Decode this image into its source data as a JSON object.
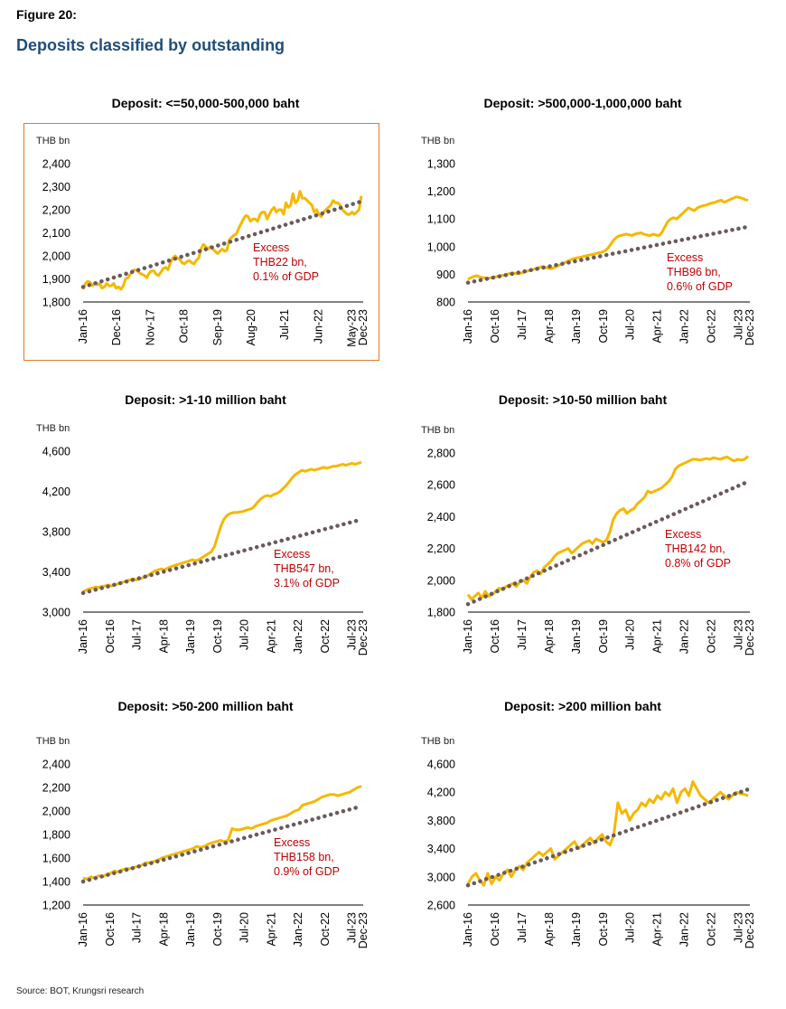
{
  "figure_label": "Figure 20:",
  "figure_title": "Deposits classified by outstanding",
  "source": "Source: BOT, Krungsri research",
  "colors": {
    "actual": "#f5b800",
    "trend": "#6b5a5a",
    "annotation": "#c00000",
    "highlight_border": "#e07b30",
    "title": "#1f4e79"
  },
  "chart_data": [
    {
      "type": "line",
      "title": "Deposit: <=50,000-500,000 baht",
      "ylabel": "THB bn",
      "ylim": [
        1800,
        2400
      ],
      "yticks": [
        "1,800",
        "1,900",
        "2,000",
        "2,100",
        "2,200",
        "2,300",
        "2,400"
      ],
      "xticks": [
        "Jan-16",
        "Dec-16",
        "Nov-17",
        "Oct-18",
        "Sep-19",
        "Aug-20",
        "Jul-21",
        "Jun-22",
        "May-23",
        "Dec-23"
      ],
      "annotation": [
        "Excess",
        "THB22 bn,",
        "0.1% of GDP"
      ],
      "highlighted": true,
      "series": [
        {
          "kind": "actual",
          "values": [
            1855,
            1880,
            1890,
            1885,
            1870,
            1880,
            1875,
            1880,
            1860,
            1865,
            1880,
            1870,
            1870,
            1880,
            1860,
            1865,
            1855,
            1870,
            1900,
            1905,
            1920,
            1935,
            1940,
            1935,
            1925,
            1920,
            1915,
            1905,
            1925,
            1935,
            1935,
            1920,
            1915,
            1930,
            1945,
            1950,
            1940,
            1970,
            1990,
            2000,
            1990,
            1985,
            1970,
            1965,
            1975,
            1980,
            1970,
            1965,
            1980,
            1990,
            2030,
            2050,
            2040,
            2030,
            2040,
            2030,
            2020,
            2010,
            2020,
            2030,
            2020,
            2025,
            2070,
            2080,
            2090,
            2095,
            2120,
            2140,
            2160,
            2175,
            2170,
            2150,
            2160,
            2160,
            2150,
            2180,
            2190,
            2190,
            2160,
            2180,
            2200,
            2210,
            2190,
            2200,
            2200,
            2180,
            2230,
            2210,
            2220,
            2270,
            2230,
            2240,
            2280,
            2250,
            2250,
            2240,
            2230,
            2220,
            2190,
            2200,
            2180,
            2170,
            2190,
            2200,
            2210,
            2220,
            2240,
            2230,
            2230,
            2220,
            2200,
            2190,
            2180,
            2180,
            2190,
            2180,
            2190,
            2200,
            2260
          ]
        },
        {
          "kind": "trend",
          "values": [
            1865,
            2236
          ]
        }
      ]
    },
    {
      "type": "line",
      "title": "Deposit: >500,000-1,000,000 baht",
      "ylabel": "THB bn",
      "ylim": [
        800,
        1300
      ],
      "yticks": [
        "800",
        "900",
        "1,000",
        "1,100",
        "1,200",
        "1,300"
      ],
      "xticks": [
        "Jan-16",
        "Oct-16",
        "Jul-17",
        "Apr-18",
        "Jan-19",
        "Oct-19",
        "Jul-20",
        "Apr-21",
        "Jan-22",
        "Oct-22",
        "Jul-23",
        "Dec-23"
      ],
      "annotation": [
        "Excess",
        "THB96 bn,",
        "0.6% of GDP"
      ],
      "highlighted": false,
      "series": [
        {
          "kind": "actual",
          "values": [
            882,
            888,
            892,
            895,
            890,
            888,
            887,
            886,
            888,
            890,
            893,
            895,
            897,
            900,
            903,
            905,
            903,
            902,
            905,
            908,
            912,
            915,
            918,
            922,
            925,
            928,
            925,
            922,
            920,
            925,
            930,
            935,
            940,
            945,
            950,
            955,
            958,
            960,
            962,
            965,
            968,
            970,
            972,
            975,
            978,
            980,
            985,
            995,
            1010,
            1025,
            1035,
            1040,
            1042,
            1045,
            1043,
            1040,
            1045,
            1048,
            1050,
            1045,
            1042,
            1040,
            1045,
            1042,
            1040,
            1050,
            1070,
            1090,
            1100,
            1105,
            1100,
            1110,
            1120,
            1130,
            1140,
            1135,
            1130,
            1140,
            1145,
            1148,
            1150,
            1155,
            1158,
            1160,
            1165,
            1168,
            1160,
            1165,
            1170,
            1175,
            1180,
            1178,
            1175,
            1170,
            1168
          ]
        },
        {
          "kind": "trend",
          "values": [
            870,
            1072
          ]
        }
      ]
    },
    {
      "type": "line",
      "title": "Deposit: >1-10 million baht",
      "ylabel": "THB bn",
      "ylim": [
        3000,
        4600
      ],
      "yticks": [
        "3,000",
        "3,400",
        "3,800",
        "4,200",
        "4,600"
      ],
      "xticks": [
        "Jan-16",
        "Oct-16",
        "Jul-17",
        "Apr-18",
        "Jan-19",
        "Oct-19",
        "Jul-20",
        "Apr-21",
        "Jan-22",
        "Oct-22",
        "Jul-23",
        "Dec-23"
      ],
      "annotation": [
        "Excess",
        "THB547 bn,",
        "3.1% of GDP"
      ],
      "highlighted": false,
      "series": [
        {
          "kind": "actual",
          "values": [
            3200,
            3220,
            3230,
            3240,
            3250,
            3245,
            3255,
            3260,
            3270,
            3260,
            3270,
            3280,
            3290,
            3300,
            3310,
            3320,
            3330,
            3320,
            3330,
            3340,
            3350,
            3370,
            3390,
            3410,
            3420,
            3430,
            3420,
            3435,
            3450,
            3460,
            3470,
            3480,
            3490,
            3500,
            3510,
            3520,
            3510,
            3520,
            3540,
            3560,
            3580,
            3600,
            3650,
            3750,
            3850,
            3920,
            3960,
            3980,
            3990,
            3990,
            3995,
            4000,
            4010,
            4020,
            4030,
            4060,
            4100,
            4130,
            4150,
            4160,
            4150,
            4170,
            4180,
            4200,
            4230,
            4260,
            4300,
            4340,
            4370,
            4390,
            4410,
            4400,
            4410,
            4420,
            4410,
            4420,
            4430,
            4440,
            4430,
            4440,
            4450,
            4450,
            4460,
            4470,
            4460,
            4470,
            4480,
            4470,
            4480,
            4490
          ]
        },
        {
          "kind": "trend",
          "values": [
            3190,
            3920
          ]
        }
      ]
    },
    {
      "type": "line",
      "title": "Deposit: >10-50 million baht",
      "ylabel": "THB bn",
      "ylim": [
        1800,
        2800
      ],
      "yticks": [
        "1,800",
        "2,000",
        "2,200",
        "2,400",
        "2,600",
        "2,800"
      ],
      "xticks": [
        "Jan-16",
        "Oct-16",
        "Jul-17",
        "Apr-18",
        "Jan-19",
        "Oct-19",
        "Jul-20",
        "Apr-21",
        "Jan-22",
        "Oct-22",
        "Jul-23",
        "Dec-23"
      ],
      "annotation": [
        "Excess",
        "THB142 bn,",
        "0.8% of GDP"
      ],
      "highlighted": false,
      "series": [
        {
          "kind": "actual",
          "values": [
            1910,
            1880,
            1900,
            1920,
            1890,
            1930,
            1900,
            1910,
            1930,
            1950,
            1940,
            1960,
            1970,
            1980,
            1960,
            1990,
            2000,
            1980,
            2020,
            2050,
            2060,
            2040,
            2080,
            2100,
            2120,
            2150,
            2170,
            2180,
            2190,
            2200,
            2170,
            2190,
            2210,
            2230,
            2240,
            2250,
            2230,
            2260,
            2250,
            2240,
            2250,
            2300,
            2380,
            2420,
            2440,
            2450,
            2420,
            2440,
            2450,
            2480,
            2500,
            2520,
            2560,
            2550,
            2560,
            2570,
            2580,
            2600,
            2620,
            2650,
            2700,
            2720,
            2730,
            2740,
            2750,
            2760,
            2760,
            2755,
            2760,
            2765,
            2760,
            2770,
            2765,
            2760,
            2770,
            2775,
            2760,
            2750,
            2760,
            2755,
            2760,
            2780
          ]
        },
        {
          "kind": "trend",
          "values": [
            1850,
            2620
          ]
        }
      ]
    },
    {
      "type": "line",
      "title": "Deposit: >50-200 million baht",
      "ylabel": "THB bn",
      "ylim": [
        1200,
        2400
      ],
      "yticks": [
        "1,200",
        "1,400",
        "1,600",
        "1,800",
        "2,000",
        "2,200",
        "2,400"
      ],
      "xticks": [
        "Jan-16",
        "Oct-16",
        "Jul-17",
        "Apr-18",
        "Jan-19",
        "Oct-19",
        "Jul-20",
        "Apr-21",
        "Jan-22",
        "Oct-22",
        "Jul-23",
        "Dec-23"
      ],
      "annotation": [
        "Excess",
        "THB158 bn,",
        "0.9% of GDP"
      ],
      "highlighted": false,
      "series": [
        {
          "kind": "actual",
          "values": [
            1430,
            1420,
            1440,
            1430,
            1450,
            1440,
            1460,
            1470,
            1490,
            1480,
            1500,
            1510,
            1510,
            1520,
            1530,
            1540,
            1560,
            1560,
            1570,
            1580,
            1600,
            1610,
            1620,
            1630,
            1640,
            1650,
            1660,
            1670,
            1680,
            1700,
            1690,
            1700,
            1720,
            1730,
            1740,
            1750,
            1740,
            1750,
            1850,
            1840,
            1840,
            1850,
            1860,
            1850,
            1870,
            1880,
            1890,
            1900,
            1920,
            1930,
            1940,
            1950,
            1960,
            1980,
            2000,
            2010,
            2050,
            2060,
            2070,
            2080,
            2100,
            2120,
            2130,
            2140,
            2140,
            2130,
            2140,
            2150,
            2160,
            2180,
            2200,
            2210
          ]
        },
        {
          "kind": "trend",
          "values": [
            1400,
            2040
          ]
        }
      ]
    },
    {
      "type": "line",
      "title": "Deposit: >200 million baht",
      "ylabel": "THB bn",
      "ylim": [
        2600,
        4600
      ],
      "yticks": [
        "2,600",
        "3,000",
        "3,400",
        "3,800",
        "4,200",
        "4,600"
      ],
      "xticks": [
        "Jan-16",
        "Oct-16",
        "Jul-17",
        "Apr-18",
        "Jan-19",
        "Oct-19",
        "Jul-20",
        "Apr-21",
        "Jan-22",
        "Oct-22",
        "Jul-23",
        "Dec-23"
      ],
      "annotation": [],
      "highlighted": false,
      "series": [
        {
          "kind": "actual",
          "values": [
            2900,
            3000,
            3050,
            2950,
            2880,
            3050,
            2900,
            3000,
            2950,
            3050,
            3100,
            3000,
            3100,
            3150,
            3100,
            3200,
            3250,
            3300,
            3350,
            3300,
            3350,
            3400,
            3250,
            3300,
            3350,
            3400,
            3450,
            3500,
            3400,
            3450,
            3500,
            3550,
            3480,
            3550,
            3600,
            3500,
            3450,
            3600,
            4050,
            3900,
            3950,
            3800,
            3900,
            3950,
            4050,
            4000,
            4100,
            4050,
            4150,
            4100,
            4200,
            4150,
            4250,
            4050,
            4200,
            4250,
            4150,
            4350,
            4250,
            4150,
            4100,
            4050,
            4100,
            4150,
            4200,
            4150,
            4100,
            4150,
            4200,
            4180,
            4170,
            4150
          ]
        },
        {
          "kind": "trend",
          "values": [
            2880,
            4240
          ]
        }
      ]
    }
  ]
}
